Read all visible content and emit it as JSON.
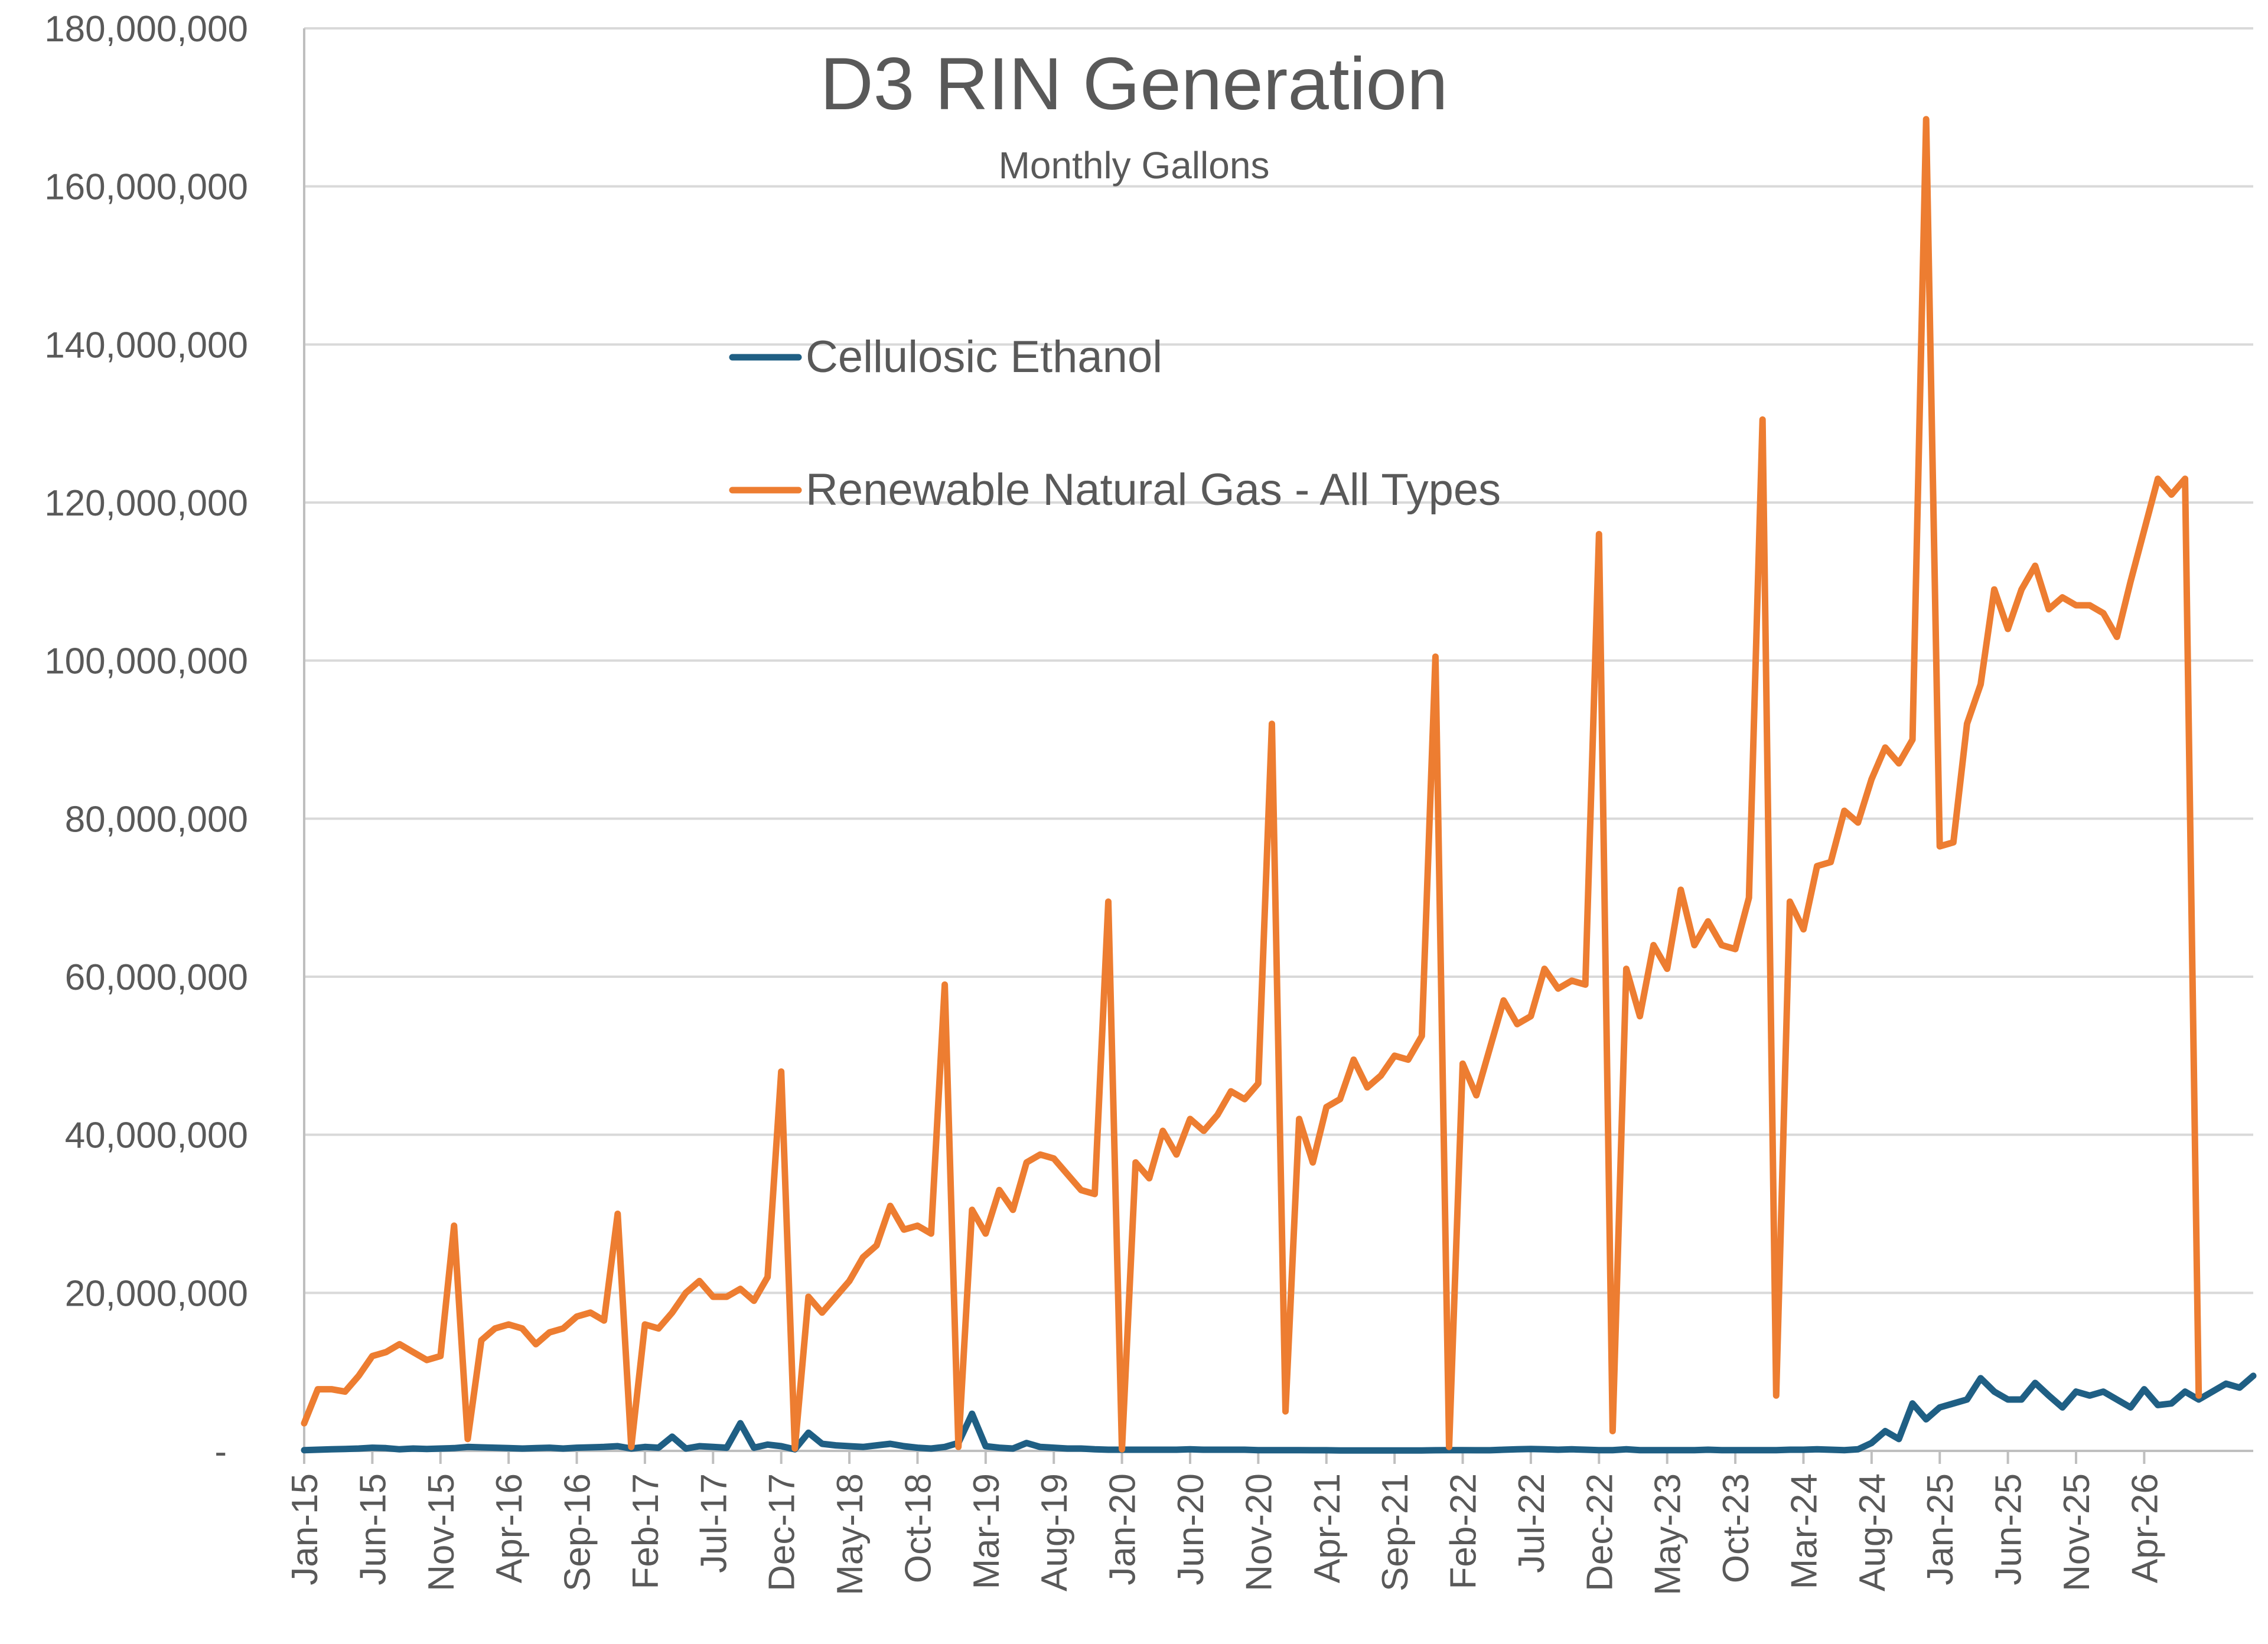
{
  "chart_data": {
    "type": "line",
    "title": "D3 RIN Generation",
    "subtitle": "Monthly Gallons",
    "xlabel": "",
    "ylabel": "",
    "ylim": [
      0,
      180000000
    ],
    "yticks": [
      0,
      20000000,
      40000000,
      60000000,
      80000000,
      100000000,
      120000000,
      140000000,
      160000000,
      180000000
    ],
    "ytick_labels": [
      "-",
      "20,000,000",
      "40,000,000",
      "60,000,000",
      "80,000,000",
      "100,000,000",
      "120,000,000",
      "140,000,000",
      "160,000,000",
      "180,000,000"
    ],
    "x_start": "2015-01",
    "x_labels": [
      "Jan-15",
      "Jun-15",
      "Nov-15",
      "Apr-16",
      "Sep-16",
      "Feb-17",
      "Jul-17",
      "Dec-17",
      "May-18",
      "Oct-18",
      "Mar-19",
      "Aug-19",
      "Jan-20",
      "Jun-20",
      "Nov-20",
      "Apr-21",
      "Sep-21",
      "Feb-22",
      "Jul-22",
      "Dec-22",
      "May-23",
      "Oct-23",
      "Mar-24",
      "Aug-24",
      "Jan-25",
      "Jun-25",
      "Nov-25",
      "Apr-26"
    ],
    "grid": true,
    "legend_position": "top-center",
    "series": [
      {
        "name": "Cellulosic Ethanol",
        "color": "#1f5f84",
        "values": [
          100000,
          150000,
          200000,
          250000,
          300000,
          400000,
          350000,
          200000,
          300000,
          250000,
          300000,
          350000,
          500000,
          450000,
          400000,
          350000,
          300000,
          350000,
          400000,
          300000,
          400000,
          450000,
          500000,
          600000,
          300000,
          500000,
          400000,
          1800000,
          300000,
          600000,
          500000,
          400000,
          3500000,
          400000,
          800000,
          600000,
          200000,
          2300000,
          900000,
          700000,
          600000,
          500000,
          700000,
          900000,
          600000,
          400000,
          300000,
          500000,
          1000000,
          4700000,
          600000,
          400000,
          300000,
          1000000,
          500000,
          400000,
          300000,
          300000,
          200000,
          150000,
          150000,
          150000,
          150000,
          150000,
          150000,
          200000,
          150000,
          150000,
          150000,
          150000,
          100000,
          100000,
          100000,
          100000,
          80000,
          80000,
          60000,
          60000,
          60000,
          60000,
          60000,
          60000,
          60000,
          80000,
          100000,
          100000,
          80000,
          80000,
          150000,
          200000,
          250000,
          200000,
          150000,
          200000,
          150000,
          100000,
          100000,
          200000,
          100000,
          100000,
          100000,
          100000,
          100000,
          150000,
          100000,
          100000,
          100000,
          100000,
          100000,
          150000,
          150000,
          200000,
          150000,
          100000,
          200000,
          1000000,
          2500000,
          1500000,
          6000000,
          4000000,
          5500000,
          6000000,
          6500000,
          9200000,
          7500000,
          6500000,
          6500000,
          8600000,
          7000000,
          5500000,
          7500000,
          7000000,
          7500000,
          6500000,
          5500000,
          7800000,
          5800000,
          6000000,
          7500000,
          6500000,
          7500000,
          8500000,
          8000000,
          9500000
        ],
        "values_note": ""
      },
      {
        "name": "Renewable Natural Gas - All Types",
        "color": "#ed7d31",
        "values": [
          3500000,
          7800000,
          7800000,
          7500000,
          9500000,
          12000000,
          12500000,
          13500000,
          12500000,
          11500000,
          12000000,
          28500000,
          1500000,
          14000000,
          15500000,
          16000000,
          15500000,
          13500000,
          15000000,
          15500000,
          17000000,
          17500000,
          16500000,
          30000000,
          500000,
          16000000,
          15500000,
          17500000,
          20000000,
          21500000,
          19500000,
          19500000,
          20500000,
          19000000,
          22000000,
          48000000,
          300000,
          19500000,
          17500000,
          19500000,
          21500000,
          24500000,
          26000000,
          31000000,
          28000000,
          28500000,
          27500000,
          59000000,
          500000,
          30500000,
          27500000,
          33000000,
          30500000,
          36500000,
          37500000,
          37000000,
          35000000,
          33000000,
          32500000,
          69500000,
          200000,
          36500000,
          34500000,
          40500000,
          37500000,
          42000000,
          40500000,
          42500000,
          45500000,
          44500000,
          46500000,
          92000000,
          5000000,
          42000000,
          36500000,
          43500000,
          44500000,
          49500000,
          46000000,
          47500000,
          50000000,
          49500000,
          52500000,
          100500000,
          500000,
          49000000,
          45000000,
          51000000,
          57000000,
          54000000,
          55000000,
          61000000,
          58500000,
          59500000,
          59000000,
          116000000,
          2500000,
          61000000,
          55000000,
          64000000,
          61000000,
          71000000,
          64000000,
          67000000,
          64000000,
          63500000,
          70000000,
          130500000,
          7000000,
          69500000,
          66000000,
          74000000,
          74500000,
          81000000,
          79500000,
          85000000,
          89000000,
          87000000,
          90000000,
          168500000,
          76500000,
          77000000,
          92000000,
          97000000,
          109000000,
          104000000,
          109000000,
          112000000,
          106500000,
          108000000,
          107000000,
          107000000,
          106000000,
          103000000,
          110000000,
          116500000,
          123000000,
          121000000,
          123000000,
          7000000
        ]
      }
    ]
  }
}
